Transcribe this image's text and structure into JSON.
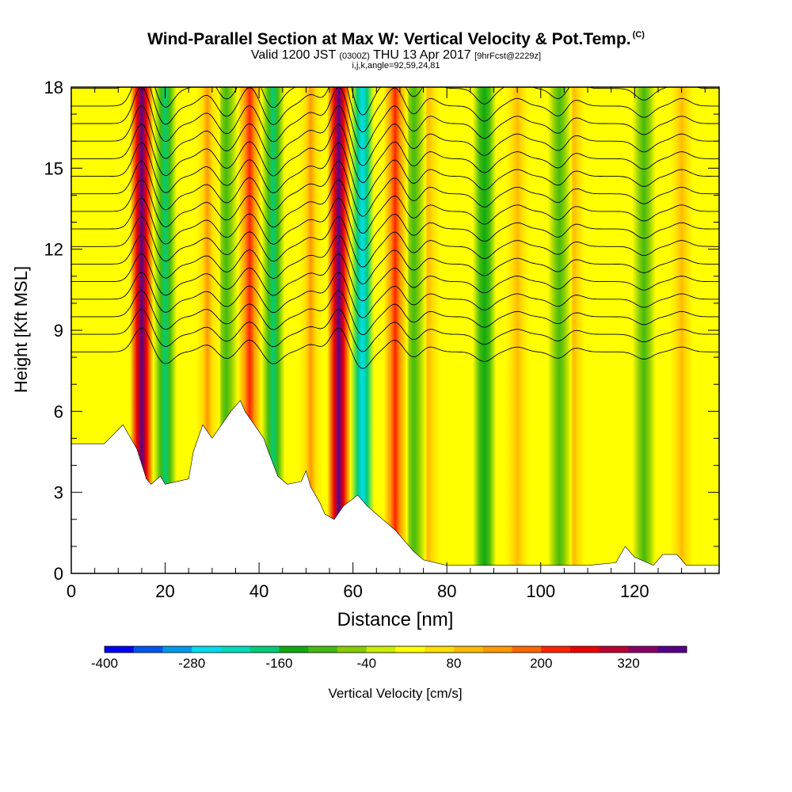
{
  "header": {
    "title": "Wind-Parallel Section at Max W: Vertical Velocity & Pot.Temp.",
    "copyright": "(C)",
    "valid_prefix": "Valid 1200 JST",
    "valid_utc": "(0300Z)",
    "valid_date": "THU 13 Apr 2017",
    "forecast": "[9hrFcst@2229z]",
    "subtitle2": "i,j,k,angle=92,59,24,81"
  },
  "chart_data": {
    "type": "heatmap",
    "title": "Wind-Parallel Section at Max W: Vertical Velocity & Pot.Temp.",
    "xlabel": "Distance [nm]",
    "ylabel": "Height [Kft MSL]",
    "xlim": [
      0,
      138
    ],
    "ylim": [
      0,
      18
    ],
    "xticks": [
      0,
      20,
      40,
      60,
      80,
      100,
      120
    ],
    "yticks": [
      0,
      3,
      6,
      9,
      12,
      15,
      18
    ],
    "colorbar": {
      "label": "Vertical Velocity [cm/s]",
      "tick_labels": [
        -400,
        -280,
        -160,
        -40,
        80,
        200,
        320
      ],
      "colors": [
        "#0000f2",
        "#0055ee",
        "#0099ee",
        "#00ddee",
        "#00ddbb",
        "#00cc77",
        "#10aa10",
        "#44bb10",
        "#88cc00",
        "#ccee00",
        "#ffff00",
        "#ffdd00",
        "#ffbb00",
        "#ff9900",
        "#ff6600",
        "#ff2200",
        "#ee0000",
        "#bb0033",
        "#880066",
        "#550088"
      ]
    },
    "updrafts": [
      {
        "x": 15,
        "peak_cm_s": 400
      },
      {
        "x": 29,
        "peak_cm_s": 120
      },
      {
        "x": 38,
        "peak_cm_s": 200
      },
      {
        "x": 51,
        "peak_cm_s": 120
      },
      {
        "x": 57,
        "peak_cm_s": 400
      },
      {
        "x": 69,
        "peak_cm_s": 200
      },
      {
        "x": 76,
        "peak_cm_s": 100
      },
      {
        "x": 95,
        "peak_cm_s": 80
      },
      {
        "x": 107,
        "peak_cm_s": 80
      },
      {
        "x": 130,
        "peak_cm_s": 80
      }
    ],
    "downdrafts": [
      {
        "x": 20,
        "peak_cm_s": -200
      },
      {
        "x": 33,
        "peak_cm_s": -120
      },
      {
        "x": 43,
        "peak_cm_s": -200
      },
      {
        "x": 62,
        "peak_cm_s": -280
      },
      {
        "x": 73,
        "peak_cm_s": -120
      },
      {
        "x": 88,
        "peak_cm_s": -160
      },
      {
        "x": 104,
        "peak_cm_s": -120
      },
      {
        "x": 122,
        "peak_cm_s": -120
      }
    ],
    "terrain": {
      "x": [
        0,
        7,
        11,
        14,
        16,
        17,
        19,
        20,
        25,
        26,
        28,
        30,
        32,
        34,
        36,
        37,
        39,
        41,
        42,
        44,
        46,
        49,
        50,
        51,
        53,
        54,
        56,
        58,
        61,
        63,
        65,
        67,
        69,
        71,
        73,
        75,
        80,
        90,
        100,
        110,
        116,
        118,
        120,
        124,
        126,
        129,
        131,
        138
      ],
      "height_kft": [
        4.8,
        4.8,
        5.5,
        4.6,
        3.5,
        3.3,
        3.6,
        3.3,
        3.5,
        4.5,
        5.5,
        5.0,
        5.5,
        6.0,
        6.4,
        6.0,
        5.5,
        5.0,
        4.5,
        3.6,
        3.3,
        3.4,
        3.8,
        3.2,
        2.6,
        2.2,
        2.0,
        2.5,
        2.9,
        2.5,
        2.2,
        1.9,
        1.6,
        1.2,
        0.8,
        0.5,
        0.3,
        0.3,
        0.3,
        0.3,
        0.4,
        1.0,
        0.6,
        0.3,
        0.7,
        0.7,
        0.3,
        0.3
      ]
    },
    "pot_temp_contours": "black isentropes, wave-like over updraft/downdraft bands"
  }
}
